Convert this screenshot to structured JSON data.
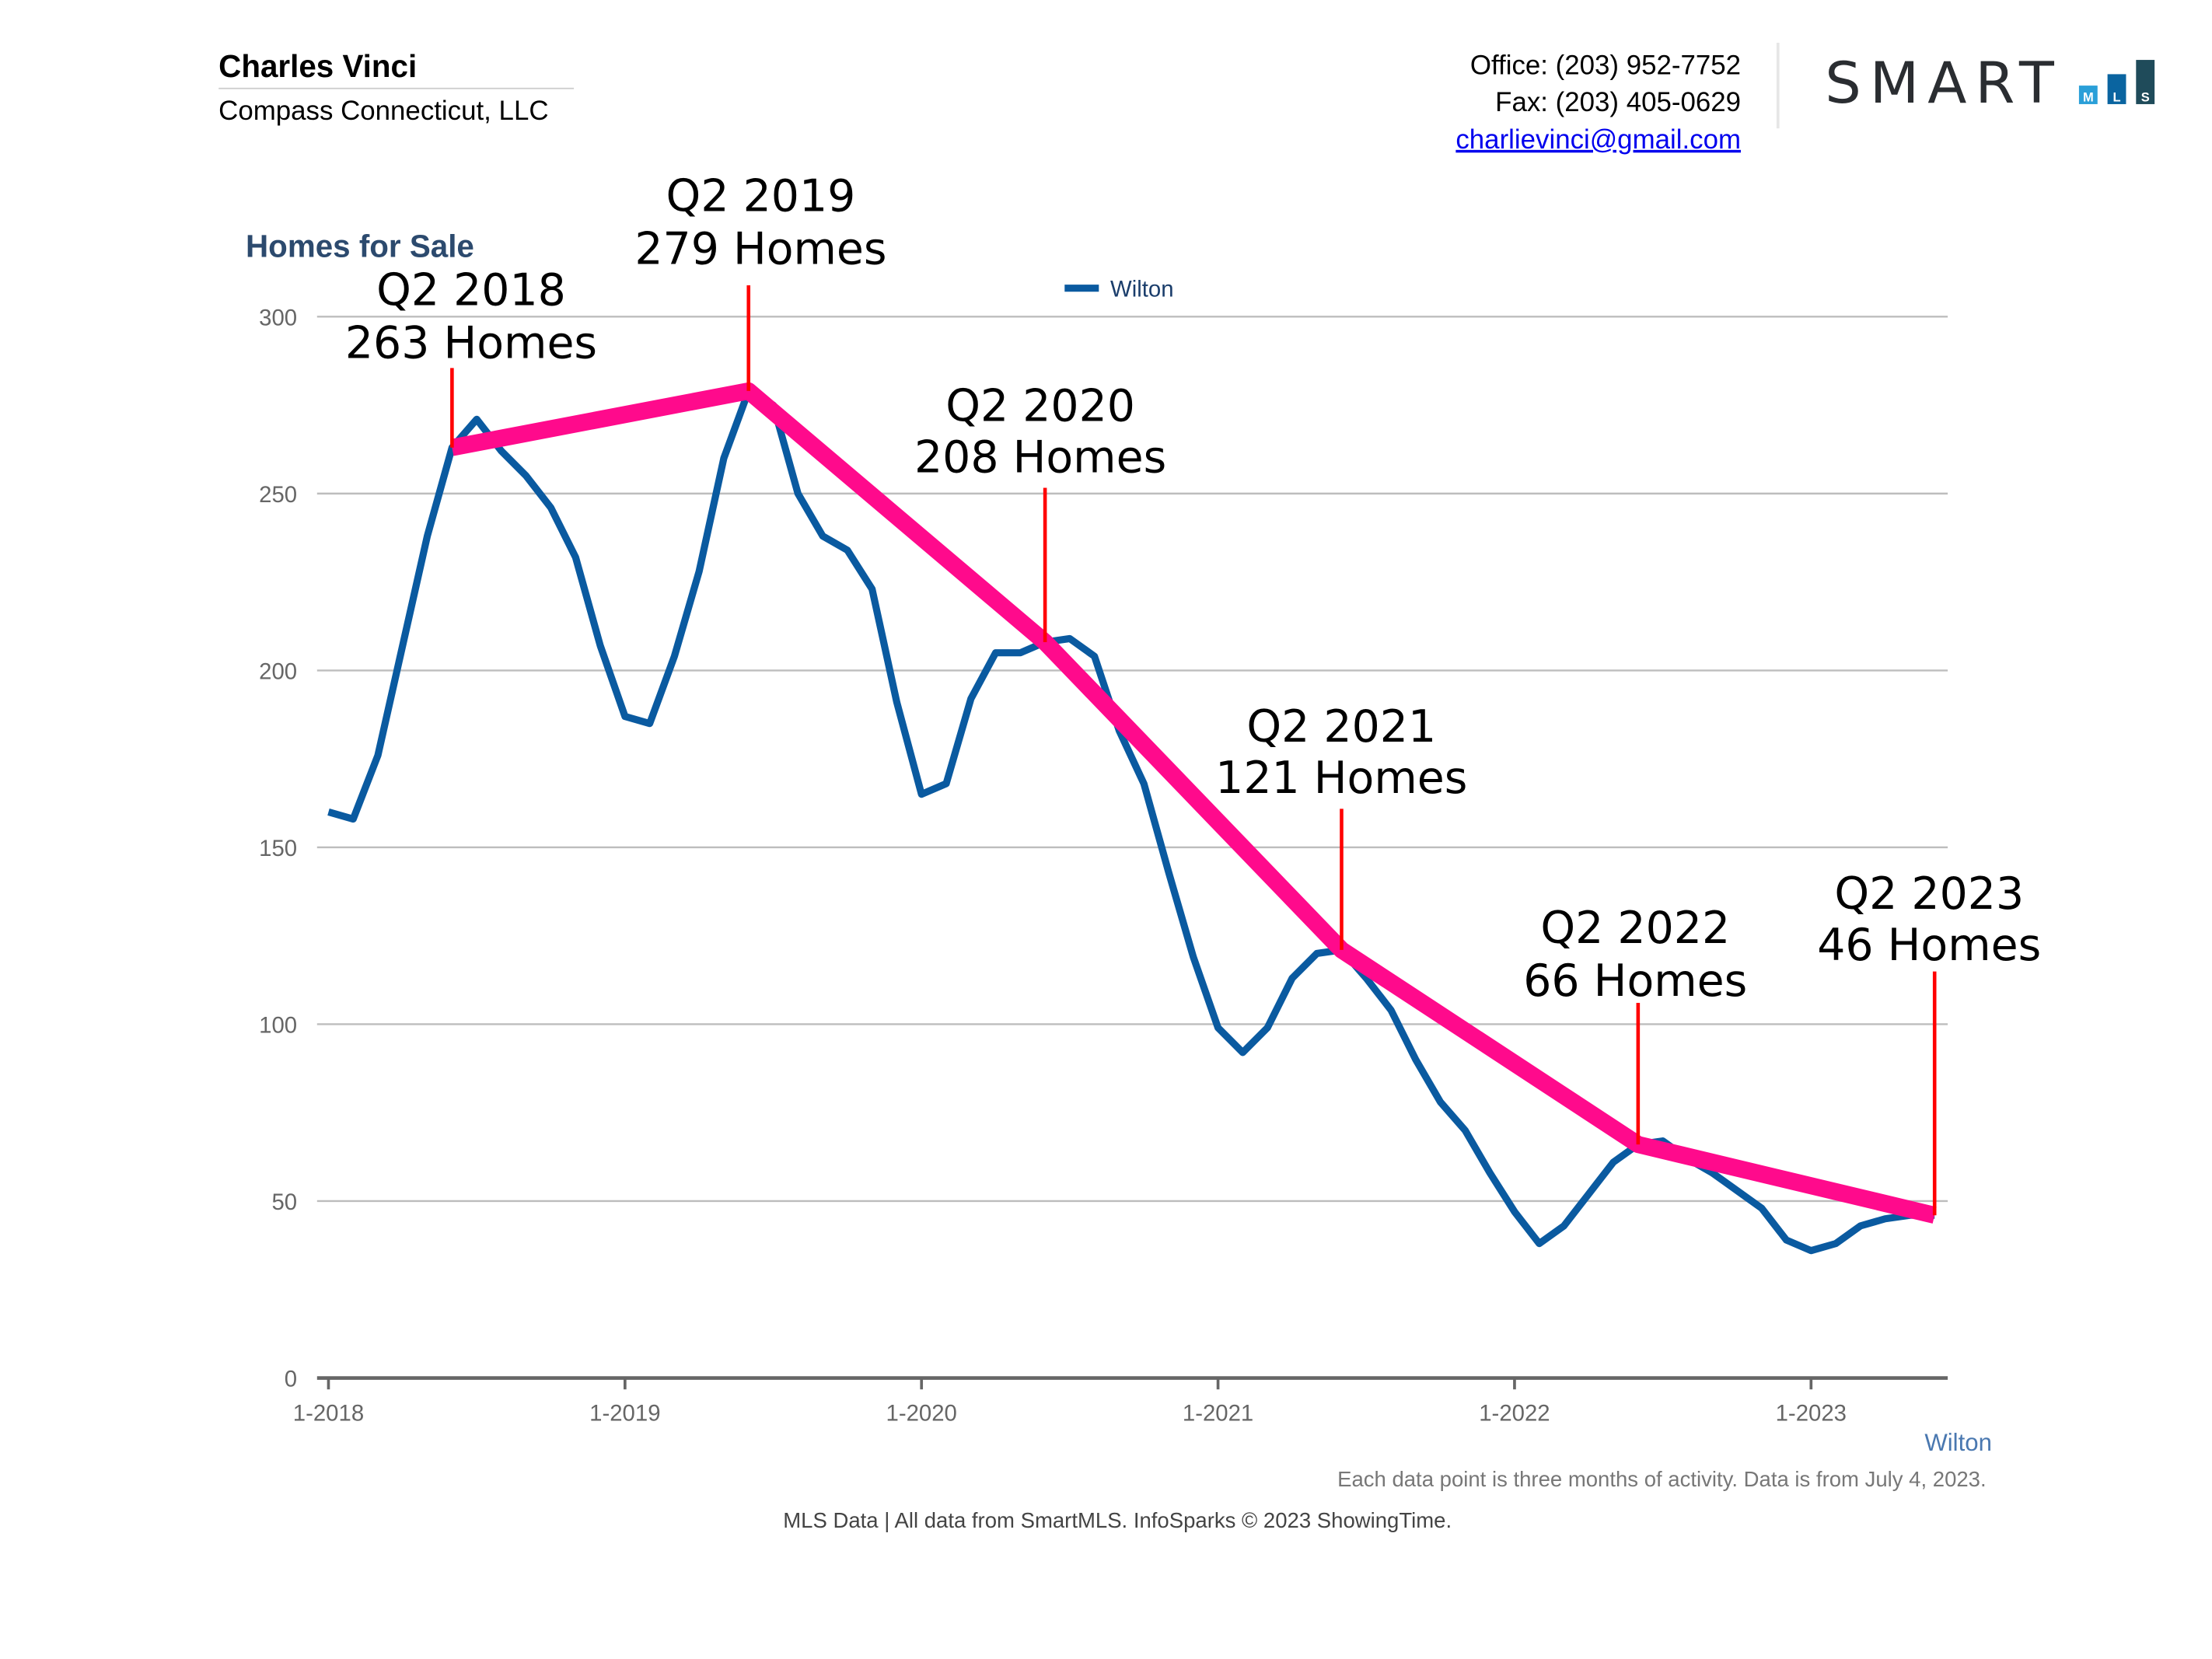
{
  "header": {
    "agent_name": "Charles Vinci",
    "company": "Compass Connecticut, LLC",
    "office": "Office: (203) 952-7752",
    "fax": "Fax: (203) 405-0629",
    "email": "charlievinci@gmail.com",
    "logo": {
      "text": "SMART",
      "bars": [
        "M",
        "L",
        "S"
      ],
      "bar_colors": [
        "#2a9fd8",
        "#0a64a0",
        "#1f4b5a"
      ]
    }
  },
  "chart_data": {
    "type": "line",
    "ylabel": "Homes for Sale",
    "ylim": [
      0,
      300
    ],
    "yticks": [
      0,
      50,
      100,
      150,
      200,
      250,
      300
    ],
    "xtick_labels": [
      "1-2018",
      "1-2019",
      "1-2020",
      "1-2021",
      "1-2022",
      "1-2023"
    ],
    "grid": true,
    "legend": {
      "position": "top-center",
      "entries": [
        "Wilton"
      ]
    },
    "x_start": "2018-01",
    "x_end": "2023-06",
    "series": [
      {
        "name": "Wilton",
        "color": "#0a5aa0",
        "values": [
          160,
          158,
          176,
          207,
          238,
          263,
          271,
          262,
          255,
          246,
          232,
          207,
          187,
          185,
          204,
          228,
          260,
          279,
          275,
          250,
          238,
          234,
          223,
          191,
          165,
          168,
          192,
          205,
          205,
          208,
          209,
          204,
          183,
          168,
          143,
          119,
          99,
          92,
          99,
          113,
          120,
          121,
          113,
          104,
          90,
          78,
          70,
          58,
          47,
          38,
          43,
          52,
          61,
          66,
          67,
          62,
          58,
          53,
          48,
          39,
          36,
          38,
          43,
          45,
          46,
          46
        ]
      }
    ],
    "trend": {
      "color": "#ff0a8c",
      "callout_line_color": "#ff0000",
      "points": [
        {
          "label": "Q2 2018",
          "text": "263 Homes",
          "month": "2018-06",
          "value": 263
        },
        {
          "label": "Q2 2019",
          "text": "279 Homes",
          "month": "2019-06",
          "value": 279
        },
        {
          "label": "Q2 2020",
          "text": "208 Homes",
          "month": "2020-06",
          "value": 208
        },
        {
          "label": "Q2 2021",
          "text": "121 Homes",
          "month": "2021-06",
          "value": 121
        },
        {
          "label": "Q2 2022",
          "text": "66 Homes",
          "month": "2022-06",
          "value": 66
        },
        {
          "label": "Q2 2023",
          "text": "46 Homes",
          "month": "2023-06",
          "value": 46
        }
      ]
    },
    "series_label": "Wilton",
    "footnote": "Each data point is three months of activity. Data is from July 4, 2023."
  },
  "footer": "MLS Data | All data from SmartMLS. InfoSparks © 2023 ShowingTime."
}
